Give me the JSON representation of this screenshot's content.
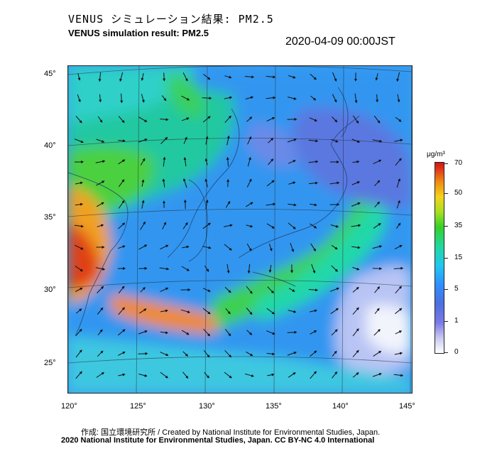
{
  "header": {
    "title_jp": "VENUS シミュレーション結果: PM2.5",
    "title_en": "VENUS simulation result: PM2.5",
    "timestamp": "2020-04-09 00:00JST"
  },
  "map": {
    "latitude_labels": [
      "45°",
      "40°",
      "35°",
      "30°",
      "25°"
    ],
    "longitude_labels": [
      "120°",
      "125°",
      "130°",
      "135°",
      "140°",
      "145°"
    ],
    "layer": "PM2.5 concentration with wind vectors"
  },
  "colorbar": {
    "unit": "μg/m³",
    "ticks": [
      "70",
      "50",
      "35",
      "15",
      "5",
      "1",
      "0"
    ],
    "colors": {
      "low": "#ffffff",
      "blue": "#2f8fff",
      "cyan": "#21c7f0",
      "green": "#34d02a",
      "yellow": "#f5d31c",
      "orange": "#f08a14",
      "red": "#d01818"
    }
  },
  "footer": {
    "credit": "作成: 国立環境研究所 / Created by National Institute for Environmental Studies, Japan.",
    "copyright": "2020 National Institute for Environmental Studies, Japan. CC BY-NC 4.0 International"
  }
}
